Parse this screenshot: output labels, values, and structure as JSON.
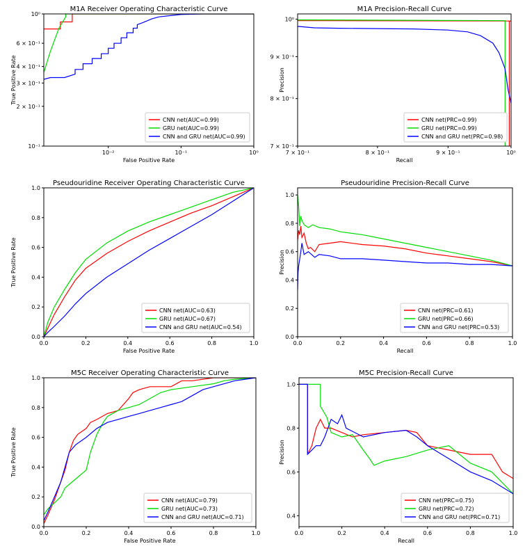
{
  "colors": {
    "cnn": "#ff0000",
    "gru": "#00dd00",
    "both": "#0000ff"
  },
  "chart_data": [
    {
      "type": "line",
      "scale": "log",
      "title": "M1A Receiver Operating Characteristic Curve",
      "xlabel": "False Positive Rate",
      "ylabel": "True Positive Rate",
      "xlim": [
        0.0013,
        1
      ],
      "ylim": [
        0.1,
        1
      ],
      "xticks": [
        {
          "v": 0.01,
          "t": "10⁻²"
        },
        {
          "v": 0.1,
          "t": "10⁻¹"
        },
        {
          "v": 1,
          "t": "10⁰"
        }
      ],
      "yticks": [
        {
          "v": 0.1,
          "t": "10⁻¹"
        },
        {
          "v": 0.2,
          "t": "2 × 10⁻¹"
        },
        {
          "v": 0.3,
          "t": "3 × 10⁻¹"
        },
        {
          "v": 0.4,
          "t": "4 × 10⁻¹"
        },
        {
          "v": 0.6,
          "t": "6 × 10⁻¹"
        },
        {
          "v": 1,
          "t": "10⁰"
        }
      ],
      "legend": [
        "CNN net(AUC=0.99)",
        "GRU net(AUC=0.99)",
        "CNN and GRU net(AUC=0.99)"
      ],
      "series": [
        {
          "name": "CNN net(AUC=0.99)",
          "x": [
            0.0013,
            0.0022,
            0.0022,
            0.0032,
            0.0032,
            1
          ],
          "y": [
            0.77,
            0.77,
            0.87,
            0.87,
            1,
            1
          ]
        },
        {
          "name": "GRU net(AUC=0.99)",
          "x": [
            0.0013,
            0.0016,
            0.0021,
            0.0026,
            0.0026,
            1
          ],
          "y": [
            0.36,
            0.52,
            0.78,
            0.95,
            1,
            1
          ]
        },
        {
          "name": "CNN and GRU net(AUC=0.99)",
          "x": [
            0.0013,
            0.0016,
            0.0025,
            0.0035,
            0.0035,
            0.0045,
            0.0045,
            0.006,
            0.006,
            0.008,
            0.008,
            0.01,
            0.01,
            0.012,
            0.012,
            0.015,
            0.015,
            0.018,
            0.018,
            0.022,
            0.022,
            0.025,
            0.025,
            0.03,
            0.04,
            0.05,
            0.07,
            0.1,
            0.2,
            0.4,
            1
          ],
          "y": [
            0.32,
            0.33,
            0.33,
            0.35,
            0.38,
            0.38,
            0.42,
            0.42,
            0.46,
            0.46,
            0.5,
            0.5,
            0.55,
            0.55,
            0.6,
            0.6,
            0.66,
            0.66,
            0.72,
            0.72,
            0.78,
            0.78,
            0.83,
            0.86,
            0.92,
            0.95,
            0.97,
            0.99,
            1,
            1,
            1
          ]
        }
      ]
    },
    {
      "type": "line",
      "scale": "log",
      "title": "M1A Precision-Recall Curve",
      "xlabel": "Recall",
      "ylabel": "Precision",
      "xlim": [
        0.7,
        1.0
      ],
      "ylim": [
        0.7,
        1.015
      ],
      "xticks": [
        {
          "v": 0.7,
          "t": "7 × 10⁻¹"
        },
        {
          "v": 0.8,
          "t": "8 × 10⁻¹"
        },
        {
          "v": 0.9,
          "t": "9 × 10⁻¹"
        },
        {
          "v": 1,
          "t": "10⁰"
        }
      ],
      "yticks": [
        {
          "v": 0.7,
          "t": "7 × 10⁻¹"
        },
        {
          "v": 0.8,
          "t": "8 × 10⁻¹"
        },
        {
          "v": 0.9,
          "t": "9 × 10⁻¹"
        },
        {
          "v": 1,
          "t": "10⁰"
        }
      ],
      "legend": [
        "CNN net(PRC=0.99)",
        "GRU net(PRC=0.99)",
        "CNN and GRU net(PRC=0.98)"
      ],
      "series": [
        {
          "name": "CNN net(PRC=0.99)",
          "x": [
            0.7,
            0.995,
            1.0
          ],
          "y": [
            0.996,
            0.995,
            0.995
          ],
          "drop": {
            "x": 0.997,
            "from": 0.995,
            "to": 0.7
          }
        },
        {
          "name": "GRU net(PRC=0.99)",
          "x": [
            0.7,
            0.99,
            0.99
          ],
          "y": [
            0.998,
            0.996,
            0.7
          ]
        },
        {
          "name": "CNN and GRU net(PRC=0.98)",
          "x": [
            0.7,
            0.72,
            0.75,
            0.8,
            0.85,
            0.9,
            0.93,
            0.95,
            0.97,
            0.98,
            0.99,
            0.995,
            1.0
          ],
          "y": [
            0.98,
            0.976,
            0.975,
            0.974,
            0.973,
            0.97,
            0.965,
            0.955,
            0.935,
            0.91,
            0.87,
            0.82,
            0.79
          ]
        }
      ]
    },
    {
      "type": "line",
      "scale": "linear",
      "title": "Pseudouridine Receiver Operating Characteristic Curve",
      "xlabel": "False Positive Rate",
      "ylabel": "True Positive Rate",
      "xlim": [
        0,
        1
      ],
      "ylim": [
        0,
        1
      ],
      "xticks": [
        {
          "v": 0,
          "t": "0.0"
        },
        {
          "v": 0.2,
          "t": "0.2"
        },
        {
          "v": 0.4,
          "t": "0.4"
        },
        {
          "v": 0.6,
          "t": "0.6"
        },
        {
          "v": 0.8,
          "t": "0.8"
        },
        {
          "v": 1,
          "t": "1.0"
        }
      ],
      "yticks": [
        {
          "v": 0,
          "t": "0.0"
        },
        {
          "v": 0.2,
          "t": "0.2"
        },
        {
          "v": 0.4,
          "t": "0.4"
        },
        {
          "v": 0.6,
          "t": "0.6"
        },
        {
          "v": 0.8,
          "t": "0.8"
        },
        {
          "v": 1,
          "t": "1.0"
        }
      ],
      "legend": [
        "CNN net(AUC=0.63)",
        "GRU net(AUC=0.67)",
        "CNN and GRU net(AUC=0.54)"
      ],
      "series": [
        {
          "name": "CNN net(AUC=0.63)",
          "x": [
            0,
            0.02,
            0.05,
            0.1,
            0.15,
            0.2,
            0.3,
            0.4,
            0.5,
            0.6,
            0.7,
            0.8,
            0.9,
            1
          ],
          "y": [
            0,
            0.06,
            0.15,
            0.27,
            0.38,
            0.46,
            0.56,
            0.64,
            0.71,
            0.77,
            0.83,
            0.88,
            0.94,
            1
          ]
        },
        {
          "name": "GRU net(AUC=0.67)",
          "x": [
            0,
            0.02,
            0.05,
            0.1,
            0.15,
            0.2,
            0.3,
            0.4,
            0.5,
            0.6,
            0.7,
            0.8,
            0.9,
            1
          ],
          "y": [
            0,
            0.1,
            0.2,
            0.32,
            0.43,
            0.52,
            0.63,
            0.71,
            0.77,
            0.82,
            0.87,
            0.92,
            0.97,
            1
          ]
        },
        {
          "name": "CNN and GRU net(AUC=0.54)",
          "x": [
            0,
            0.02,
            0.05,
            0.1,
            0.15,
            0.2,
            0.3,
            0.4,
            0.5,
            0.6,
            0.7,
            0.8,
            0.9,
            1
          ],
          "y": [
            0,
            0.03,
            0.07,
            0.14,
            0.22,
            0.29,
            0.4,
            0.49,
            0.58,
            0.66,
            0.74,
            0.82,
            0.91,
            1
          ]
        }
      ]
    },
    {
      "type": "line",
      "scale": "linear",
      "title": "Pseudouridine Precision-Recall Curve",
      "xlabel": "Recall",
      "ylabel": "Precision",
      "xlim": [
        0,
        1
      ],
      "ylim": [
        0,
        1.05
      ],
      "xticks": [
        {
          "v": 0,
          "t": "0.0"
        },
        {
          "v": 0.2,
          "t": "0.2"
        },
        {
          "v": 0.4,
          "t": "0.4"
        },
        {
          "v": 0.6,
          "t": "0.6"
        },
        {
          "v": 0.8,
          "t": "0.8"
        },
        {
          "v": 1,
          "t": "1.0"
        }
      ],
      "yticks": [
        {
          "v": 0,
          "t": "0.0"
        },
        {
          "v": 0.2,
          "t": "0.2"
        },
        {
          "v": 0.4,
          "t": "0.4"
        },
        {
          "v": 0.6,
          "t": "0.6"
        },
        {
          "v": 0.8,
          "t": "0.8"
        },
        {
          "v": 1,
          "t": "1.0"
        }
      ],
      "legend": [
        "CNN net(PRC=0.61)",
        "GRU net(PRC=0.66)",
        "CNN and GRU net(PRC=0.53)"
      ],
      "series": [
        {
          "name": "CNN net(PRC=0.61)",
          "x": [
            0,
            0.005,
            0.01,
            0.015,
            0.02,
            0.03,
            0.04,
            0.05,
            0.06,
            0.08,
            0.1,
            0.15,
            0.2,
            0.3,
            0.4,
            0.5,
            0.6,
            0.7,
            0.8,
            0.9,
            1
          ],
          "y": [
            0.68,
            0.75,
            0.72,
            0.78,
            0.7,
            0.73,
            0.66,
            0.62,
            0.63,
            0.6,
            0.65,
            0.66,
            0.67,
            0.65,
            0.64,
            0.62,
            0.59,
            0.57,
            0.55,
            0.53,
            0.5
          ]
        },
        {
          "name": "GRU net(PRC=0.66)",
          "x": [
            0,
            0.005,
            0.01,
            0.015,
            0.02,
            0.03,
            0.05,
            0.07,
            0.1,
            0.15,
            0.2,
            0.3,
            0.4,
            0.5,
            0.6,
            0.7,
            0.8,
            0.9,
            1
          ],
          "y": [
            1,
            0.92,
            0.78,
            0.85,
            0.82,
            0.79,
            0.77,
            0.79,
            0.77,
            0.76,
            0.74,
            0.72,
            0.69,
            0.66,
            0.63,
            0.6,
            0.57,
            0.54,
            0.5
          ]
        },
        {
          "name": "CNN and GRU net(PRC=0.53)",
          "x": [
            0,
            0.002,
            0.005,
            0.01,
            0.015,
            0.02,
            0.03,
            0.05,
            0.08,
            0.1,
            0.15,
            0.2,
            0.3,
            0.4,
            0.5,
            0.6,
            0.7,
            0.8,
            0.9,
            1
          ],
          "y": [
            0.33,
            0.45,
            0.5,
            0.55,
            0.6,
            0.66,
            0.58,
            0.6,
            0.56,
            0.58,
            0.57,
            0.55,
            0.55,
            0.54,
            0.53,
            0.52,
            0.52,
            0.51,
            0.51,
            0.5
          ]
        }
      ]
    },
    {
      "type": "line",
      "scale": "linear",
      "title": "M5C Receiver Operating Characteristic Curve",
      "xlabel": "False Positive Rate",
      "ylabel": "True Positive Rate",
      "xlim": [
        0,
        1
      ],
      "ylim": [
        0,
        1
      ],
      "xticks": [
        {
          "v": 0,
          "t": "0.0"
        },
        {
          "v": 0.2,
          "t": "0.2"
        },
        {
          "v": 0.4,
          "t": "0.4"
        },
        {
          "v": 0.6,
          "t": "0.6"
        },
        {
          "v": 0.8,
          "t": "0.8"
        },
        {
          "v": 1,
          "t": "1.0"
        }
      ],
      "yticks": [
        {
          "v": 0,
          "t": "0.0"
        },
        {
          "v": 0.2,
          "t": "0.2"
        },
        {
          "v": 0.4,
          "t": "0.4"
        },
        {
          "v": 0.6,
          "t": "0.6"
        },
        {
          "v": 0.8,
          "t": "0.8"
        },
        {
          "v": 1,
          "t": "1.0"
        }
      ],
      "legend": [
        "CNN net(AUC=0.79)",
        "GRU net(AUC=0.73)",
        "CNN and GRU net(AUC=0.71)"
      ],
      "series": [
        {
          "name": "CNN net(AUC=0.79)",
          "x": [
            0,
            0.02,
            0.05,
            0.08,
            0.1,
            0.12,
            0.14,
            0.16,
            0.2,
            0.22,
            0.25,
            0.3,
            0.35,
            0.4,
            0.42,
            0.45,
            0.5,
            0.6,
            0.65,
            0.7,
            0.8,
            0.9,
            1
          ],
          "y": [
            0.02,
            0.08,
            0.18,
            0.3,
            0.38,
            0.5,
            0.58,
            0.62,
            0.66,
            0.7,
            0.72,
            0.76,
            0.78,
            0.86,
            0.9,
            0.92,
            0.94,
            0.94,
            0.98,
            0.98,
            1,
            1,
            1
          ]
        },
        {
          "name": "GRU net(AUC=0.73)",
          "x": [
            0,
            0.02,
            0.05,
            0.08,
            0.1,
            0.15,
            0.2,
            0.22,
            0.25,
            0.28,
            0.3,
            0.35,
            0.4,
            0.45,
            0.5,
            0.55,
            0.6,
            0.7,
            0.8,
            0.85,
            0.9,
            1
          ],
          "y": [
            0.08,
            0.12,
            0.16,
            0.2,
            0.26,
            0.32,
            0.38,
            0.5,
            0.62,
            0.7,
            0.74,
            0.78,
            0.8,
            0.82,
            0.86,
            0.9,
            0.92,
            0.94,
            0.96,
            0.98,
            0.99,
            1
          ]
        },
        {
          "name": "CNN and GRU net(AUC=0.71)",
          "x": [
            0,
            0.02,
            0.05,
            0.08,
            0.1,
            0.12,
            0.15,
            0.2,
            0.25,
            0.3,
            0.35,
            0.4,
            0.45,
            0.5,
            0.55,
            0.6,
            0.65,
            0.7,
            0.75,
            0.8,
            0.85,
            0.9,
            0.95,
            1
          ],
          "y": [
            0.04,
            0.1,
            0.2,
            0.3,
            0.4,
            0.5,
            0.55,
            0.6,
            0.66,
            0.7,
            0.72,
            0.74,
            0.76,
            0.78,
            0.8,
            0.82,
            0.84,
            0.88,
            0.92,
            0.94,
            0.96,
            0.98,
            0.99,
            1
          ]
        }
      ]
    },
    {
      "type": "line",
      "scale": "linear",
      "title": "M5C Precision-Recall Curve",
      "xlabel": "Recall",
      "ylabel": "Precision",
      "xlim": [
        0,
        1
      ],
      "ylim": [
        0.35,
        1.03
      ],
      "xticks": [
        {
          "v": 0,
          "t": "0.0"
        },
        {
          "v": 0.2,
          "t": "0.2"
        },
        {
          "v": 0.4,
          "t": "0.4"
        },
        {
          "v": 0.6,
          "t": "0.6"
        },
        {
          "v": 0.8,
          "t": "0.8"
        },
        {
          "v": 1,
          "t": "1.0"
        }
      ],
      "yticks": [
        {
          "v": 0.4,
          "t": "0.4"
        },
        {
          "v": 0.6,
          "t": "0.6"
        },
        {
          "v": 0.8,
          "t": "0.8"
        },
        {
          "v": 1,
          "t": "1.0"
        }
      ],
      "legend": [
        "CNN net(PRC=0.75)",
        "GRU net(PRC=0.72)",
        "CNN and GRU net(PRC=0.71)"
      ],
      "series": [
        {
          "name": "CNN net(PRC=0.75)",
          "x": [
            0,
            0.04,
            0.04,
            0.06,
            0.08,
            0.1,
            0.12,
            0.15,
            0.2,
            0.25,
            0.3,
            0.4,
            0.5,
            0.55,
            0.6,
            0.7,
            0.8,
            0.9,
            0.95,
            1
          ],
          "y": [
            1,
            1,
            0.68,
            0.72,
            0.8,
            0.84,
            0.8,
            0.8,
            0.78,
            0.76,
            0.77,
            0.78,
            0.79,
            0.78,
            0.72,
            0.7,
            0.68,
            0.68,
            0.6,
            0.57
          ]
        },
        {
          "name": "GRU net(PRC=0.72)",
          "x": [
            0,
            0.1,
            0.1,
            0.13,
            0.15,
            0.2,
            0.25,
            0.3,
            0.33,
            0.35,
            0.4,
            0.5,
            0.6,
            0.7,
            0.8,
            0.9,
            1
          ],
          "y": [
            1,
            1,
            0.9,
            0.85,
            0.78,
            0.76,
            0.77,
            0.7,
            0.66,
            0.63,
            0.65,
            0.67,
            0.7,
            0.72,
            0.64,
            0.6,
            0.5
          ]
        },
        {
          "name": "CNN and GRU net(PRC=0.71)",
          "x": [
            0,
            0.04,
            0.04,
            0.06,
            0.08,
            0.1,
            0.12,
            0.15,
            0.18,
            0.2,
            0.22,
            0.3,
            0.4,
            0.5,
            0.55,
            0.6,
            0.7,
            0.8,
            0.9,
            1
          ],
          "y": [
            1,
            1,
            0.68,
            0.7,
            0.72,
            0.72,
            0.76,
            0.84,
            0.82,
            0.86,
            0.8,
            0.76,
            0.78,
            0.79,
            0.76,
            0.72,
            0.66,
            0.6,
            0.56,
            0.5
          ]
        }
      ]
    }
  ]
}
